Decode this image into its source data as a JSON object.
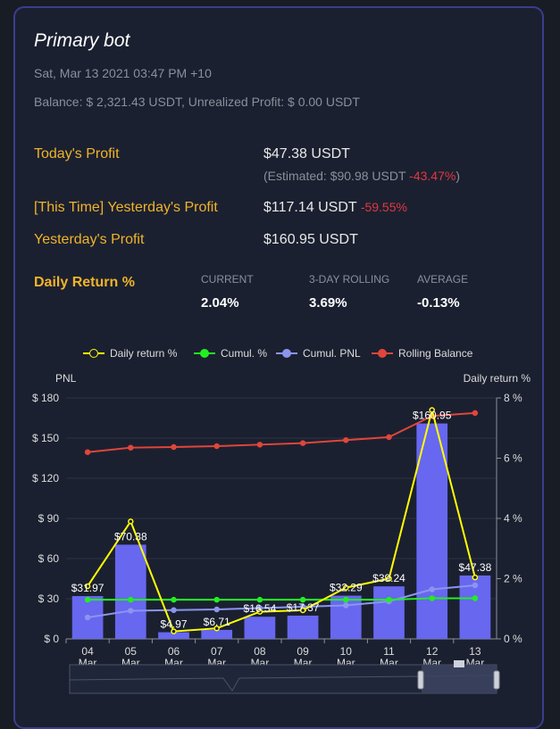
{
  "header": {
    "title": "Primary bot",
    "timestamp": "Sat, Mar 13 2021 03:47 PM +10",
    "balance_line": "Balance: $ 2,321.43 USDT, Unrealized Profit: $ 0.00 USDT"
  },
  "profits": {
    "today_label": "Today's Profit",
    "today_value": "$47.38 USDT",
    "estimated_prefix": "(Estimated: $90.98 USDT",
    "estimated_change": "-43.47%",
    "estimated_suffix": ")",
    "this_time_label": "[This Time] Yesterday's Profit",
    "this_time_value": "$117.14 USDT",
    "this_time_change": "-59.55%",
    "yesterday_label": "Yesterday's Profit",
    "yesterday_value": "$160.95 USDT"
  },
  "daily_return": {
    "label": "Daily Return %",
    "current_label": "CURRENT",
    "current_value": "2.04%",
    "rolling_label": "3-DAY ROLLING",
    "rolling_value": "3.69%",
    "average_label": "AVERAGE",
    "average_value": "-0.13%"
  },
  "colors": {
    "accent": "#f0b429",
    "negative": "#e2383f",
    "bar": "#6767f0",
    "daily_return": "#ffff00",
    "cumul_pct": "#22ee22",
    "cumul_pnl": "#8b95ee",
    "rolling_balance": "#e0463a"
  },
  "chart_data": {
    "type": "bar",
    "left_axis_label": "PNL",
    "right_axis_label": "Daily return %",
    "categories": [
      "04\nMar",
      "05\nMar",
      "06\nMar",
      "07\nMar",
      "08\nMar",
      "09\nMar",
      "10\nMar",
      "11\nMar",
      "12\nMar",
      "13\nMar"
    ],
    "left_ticks": [
      "$ 0",
      "$ 30",
      "$ 60",
      "$ 90",
      "$ 120",
      "$ 150",
      "$ 180"
    ],
    "right_ticks": [
      "0 %",
      "2 %",
      "4 %",
      "6 %",
      "8 %"
    ],
    "ylim_left": [
      0,
      180
    ],
    "ylim_right": [
      0,
      8
    ],
    "legend": [
      "Daily return %",
      "Cumul. %",
      "Cumul. PNL",
      "Rolling Balance"
    ],
    "series": [
      {
        "name": "PNL",
        "axis": "left",
        "type": "bar",
        "values": [
          31.97,
          70.38,
          4.97,
          6.71,
          16.54,
          17.37,
          32.29,
          39.24,
          160.95,
          47.38
        ],
        "labels": [
          "$31.97",
          "$70.38",
          "$4.97",
          "$6.71",
          "$16.54",
          "$17.37",
          "$32.29",
          "$39.24",
          "$160.95",
          "$47.38"
        ]
      },
      {
        "name": "Daily return %",
        "axis": "right",
        "type": "line",
        "values": [
          1.75,
          3.9,
          0.25,
          0.35,
          0.9,
          0.95,
          1.7,
          2.0,
          7.6,
          2.04
        ]
      },
      {
        "name": "Cumul. %",
        "axis": "right",
        "type": "line",
        "values": [
          1.3,
          1.3,
          1.3,
          1.3,
          1.3,
          1.3,
          1.3,
          1.3,
          1.35,
          1.35
        ]
      },
      {
        "name": "Cumul. PNL",
        "axis": "left",
        "type": "line",
        "values": [
          16,
          21,
          21.5,
          22,
          23,
          24,
          25,
          28,
          37,
          40
        ]
      },
      {
        "name": "Rolling Balance",
        "axis": "right",
        "type": "line",
        "values": [
          6.2,
          6.35,
          6.37,
          6.4,
          6.45,
          6.5,
          6.6,
          6.7,
          7.4,
          7.5
        ]
      }
    ]
  }
}
